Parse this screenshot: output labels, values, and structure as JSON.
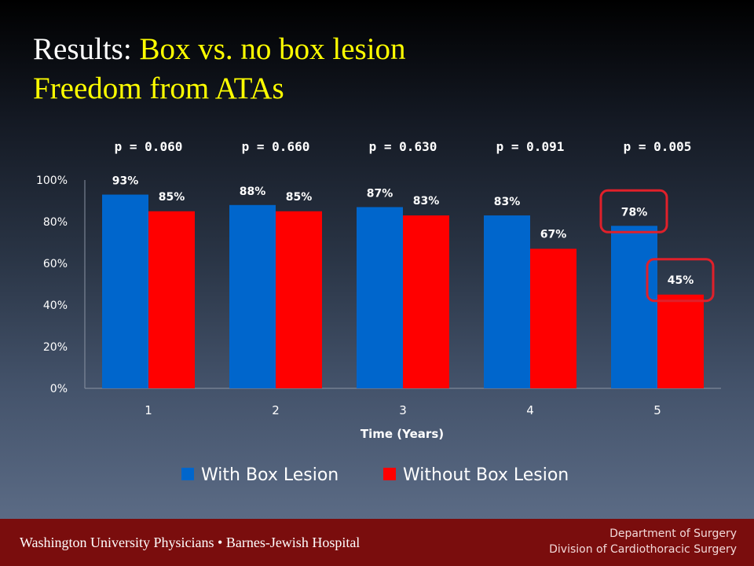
{
  "slide": {
    "title_line1_lead": "Results: ",
    "title_line1_hl": "Box vs. no box lesion",
    "title_line2": "Freedom from ATAs"
  },
  "chart_data": {
    "type": "bar",
    "categories": [
      "1",
      "2",
      "3",
      "4",
      "5"
    ],
    "series": [
      {
        "name": "With Box Lesion",
        "color": "#0066cc",
        "values": [
          93,
          88,
          87,
          83,
          78
        ],
        "labels": [
          "93%",
          "88%",
          "87%",
          "83%",
          "78%"
        ]
      },
      {
        "name": "Without Box Lesion",
        "color": "#ff0000",
        "values": [
          85,
          85,
          83,
          67,
          45
        ],
        "labels": [
          "85%",
          "85%",
          "83%",
          "67%",
          "45%"
        ]
      }
    ],
    "p_values": [
      "p = 0.060",
      "p = 0.660",
      "p = 0.630",
      "p = 0.091",
      "p = 0.005"
    ],
    "xlabel": "Time (Years)",
    "ylabel": "",
    "ylim": [
      0,
      100
    ],
    "yticks": [
      0,
      20,
      40,
      60,
      80,
      100
    ],
    "ytick_labels": [
      "0%",
      "20%",
      "40%",
      "60%",
      "80%",
      "100%"
    ],
    "legend_position": "bottom",
    "grid": false,
    "highlight_color": "#e0202a",
    "highlighted_category": "5"
  },
  "footer": {
    "left": "Washington University Physicians • Barnes-Jewish Hospital",
    "right_line1": "Department of Surgery",
    "right_line2": "Division of Cardiothoracic Surgery"
  }
}
